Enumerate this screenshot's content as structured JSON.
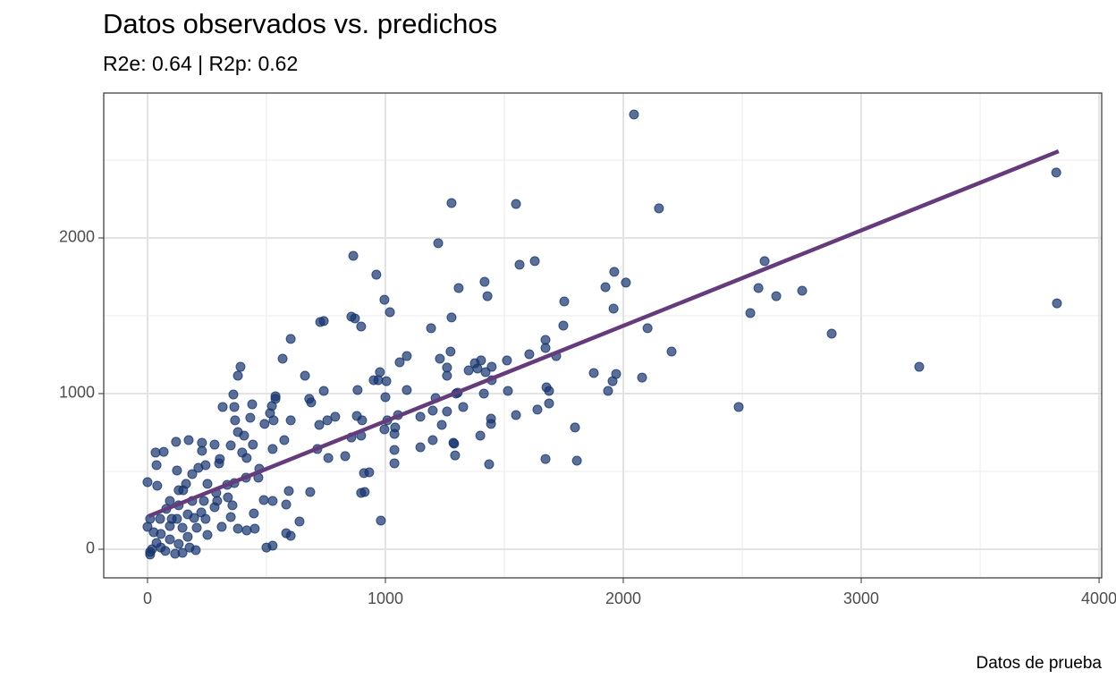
{
  "chart_data": {
    "type": "scatter",
    "title": "Datos observados vs. predichos",
    "subtitle": "R2e: 0.64 | R2p: 0.62",
    "xlabel": "Datos de prueba",
    "color": "#15336e",
    "xlim": [
      -184,
      4011
    ],
    "ylim": [
      -184,
      2931
    ],
    "xticks": [
      0,
      1000,
      2000,
      3000,
      4000
    ],
    "yticks": [
      0,
      1000,
      2000
    ],
    "xminor": [
      500,
      1500,
      2500,
      3500
    ],
    "yminor": [
      500,
      1500,
      2500
    ],
    "grid": true,
    "x": [
      2045,
      3820,
      3823,
      1278,
      1549,
      2150,
      1222,
      865,
      1564,
      1628,
      2594,
      962,
      1417,
      1308,
      1429,
      2011,
      1962,
      1925,
      2568,
      2643,
      2752,
      2534,
      1959,
      1752,
      996,
      1019,
      1278,
      857,
      872,
      898,
      741,
      726,
      1748,
      2102,
      1192,
      2876,
      602,
      1673,
      1673,
      2203,
      1274,
      1605,
      1718,
      1090,
      568,
      1402,
      1511,
      1376,
      1229,
      1060,
      391,
      3244,
      1447,
      1350,
      1259,
      1387,
      1259,
      1876,
      1970,
      2079,
      662,
      380,
      977,
      970,
      1004,
      951,
      1421,
      1447,
      741,
      361,
      538,
      1090,
      1414,
      1515,
      1677,
      1688,
      1936,
      1955,
      1297,
      1211,
      1304,
      1000,
      883,
      2485,
      1688,
      1639,
      1327,
      1199,
      1549,
      1053,
      1147,
      1008,
      1444,
      1444,
      1259,
      538,
      515,
      680,
      688,
      440,
      316,
      365,
      523,
      789,
      756,
      880,
      902,
      722,
      898,
      996,
      1041,
      1038,
      1237,
      1286,
      1199,
      1399,
      1797,
      1147,
      1038,
      1038,
      1293,
      1289,
      1436,
      1673,
      1805,
      910,
      932,
      898,
      913,
      981,
      684,
      594,
      583,
      583,
      639,
      602,
      500,
      526,
      575,
      602,
      530,
      714,
      760,
      831,
      857,
      526,
      398,
      417,
      466,
      489,
      447,
      526,
      417,
      380,
      451,
      0,
      38,
      68,
      124,
      162,
      188,
      252,
      301,
      335,
      293,
      226,
      169,
      124,
      94,
      56,
      38,
      19,
      11,
      75,
      131,
      169,
      207,
      244,
      282,
      338,
      365,
      414,
      470,
      188,
      131,
      79,
      53,
      94,
      131,
      41,
      11,
      26,
      0,
      11,
      116,
      147,
      203,
      34,
      120,
      229,
      173,
      282,
      229,
      304,
      350,
      406,
      368,
      380,
      432,
      443,
      492,
      177,
      56,
      94,
      252,
      312,
      350,
      357,
      289,
      102,
      147,
      196,
      237,
      150,
      214,
      244
    ],
    "y": [
      2793,
      2420,
      1580,
      2224,
      2218,
      2190,
      1966,
      1885,
      1828,
      1851,
      1851,
      1764,
      1718,
      1678,
      1626,
      1713,
      1782,
      1684,
      1678,
      1626,
      1661,
      1517,
      1546,
      1592,
      1603,
      1523,
      1489,
      1494,
      1483,
      1431,
      1466,
      1460,
      1437,
      1420,
      1420,
      1385,
      1351,
      1345,
      1293,
      1270,
      1270,
      1253,
      1241,
      1241,
      1224,
      1213,
      1213,
      1195,
      1224,
      1201,
      1172,
      1172,
      1172,
      1149,
      1167,
      1161,
      1115,
      1132,
      1126,
      1103,
      1115,
      1115,
      1138,
      1086,
      1080,
      1086,
      1138,
      1086,
      1017,
      994,
      983,
      1023,
      1000,
      1017,
      1040,
      1017,
      1017,
      1080,
      1000,
      971,
      1006,
      977,
      1023,
      914,
      937,
      897,
      914,
      891,
      862,
      862,
      851,
      828,
      839,
      805,
      885,
      966,
      874,
      966,
      943,
      931,
      914,
      914,
      920,
      851,
      828,
      856,
      828,
      799,
      730,
      770,
      782,
      741,
      799,
      684,
      701,
      730,
      782,
      655,
      638,
      552,
      603,
      678,
      546,
      580,
      569,
      489,
      494,
      362,
      368,
      184,
      368,
      374,
      287,
      103,
      178,
      86,
      11,
      23,
      701,
      828,
      828,
      644,
      586,
      598,
      718,
      644,
      621,
      586,
      460,
      316,
      230,
      310,
      121,
      132,
      132,
      431,
      540,
      626,
      506,
      420,
      483,
      420,
      552,
      414,
      310,
      236,
      224,
      195,
      149,
      98,
      40,
      0,
      -34,
      -11,
      34,
      80,
      138,
      195,
      270,
      333,
      425,
      460,
      517,
      310,
      282,
      259,
      195,
      310,
      379,
      408,
      195,
      109,
      144,
      -17,
      -29,
      -23,
      -6,
      621,
      690,
      684,
      701,
      672,
      632,
      580,
      667,
      730,
      828,
      753,
      845,
      672,
      805,
      11,
      11,
      63,
      92,
      144,
      207,
      282,
      362,
      195,
      138,
      201,
      310,
      379,
      523,
      540
    ],
    "fit": {
      "color": "#643b7b",
      "x": [
        5,
        3830
      ],
      "y": [
        213,
        2557
      ]
    }
  }
}
